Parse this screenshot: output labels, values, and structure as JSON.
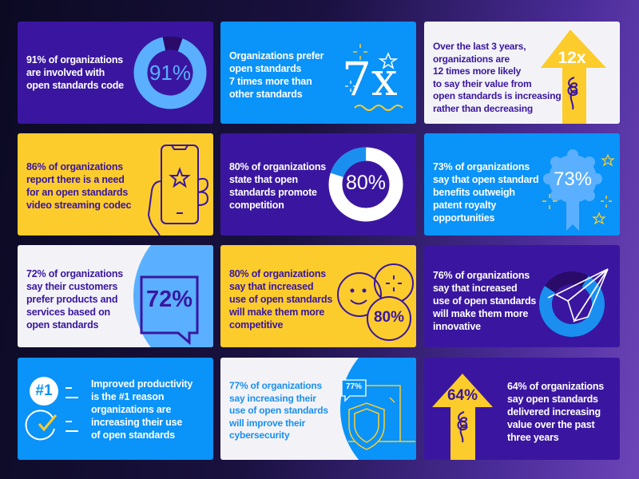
{
  "cards": [
    {
      "text": "91% of organizations\nare involved with\nopen standards code",
      "stat": "91%",
      "icon": "donut-chart-icon",
      "value_percent": 91
    },
    {
      "text": "Organizations prefer\nopen standards\n7 times more than\nother standards",
      "stat": "7x",
      "icon": "sparkle-star-icon"
    },
    {
      "text": "Over the last 3 years,\norganizations are\n12 times more likely\nto say their value from\nopen standards is increasing\nrather than decreasing",
      "stat": "12x",
      "icon": "up-arrow-icon"
    },
    {
      "text": "86% of organizations\nreport there is a need\nfor an open standards\nvideo streaming codec",
      "icon": "phone-in-hand-icon"
    },
    {
      "text": "80% of organizations\nstate that open\nstandards promote\ncompetition",
      "stat": "80%",
      "icon": "donut-chart-icon",
      "value_percent": 80
    },
    {
      "text": "73% of organizations\nsay that open standard\nbenefits outweigh\npatent royalty\nopportunities",
      "stat": "73%",
      "icon": "award-badge-icon"
    },
    {
      "text": "72% of organizations\nsay their customers\nprefer products and\nservices based on\nopen standards",
      "stat": "72%",
      "icon": "speech-bubble-icon"
    },
    {
      "text": "80% of organizations\nsay that increased\nuse of open standards\nwill make them more\ncompetitive",
      "stat": "80%",
      "icon": "smiley-circles-icon"
    },
    {
      "text": "76% of organizations\nsay that increased\nuse of open standards\nwill make them more\ninnovative",
      "icon": "paper-plane-icon",
      "value_percent": 76
    },
    {
      "text": "Improved productivity\nis the #1 reason\norganizations are\nincreasing their use\nof open standards",
      "stat": "#1",
      "icon": "checklist-icon"
    },
    {
      "text": "77% of organizations\nsay increasing their\nuse of open standards\nwill improve their\ncybersecurity",
      "stat": "77%",
      "icon": "laptop-shield-icon"
    },
    {
      "text": "64% of organizations\nsay open standards\ndelivered increasing\nvalue over the past\nthree years",
      "stat": "64%",
      "icon": "up-arrow-icon"
    }
  ],
  "colors": {
    "purple": "#3a16a0",
    "blue": "#0a93f8",
    "light_blue": "#5ab0ff",
    "yellow": "#fccc2c",
    "light": "#f3f3f7"
  }
}
